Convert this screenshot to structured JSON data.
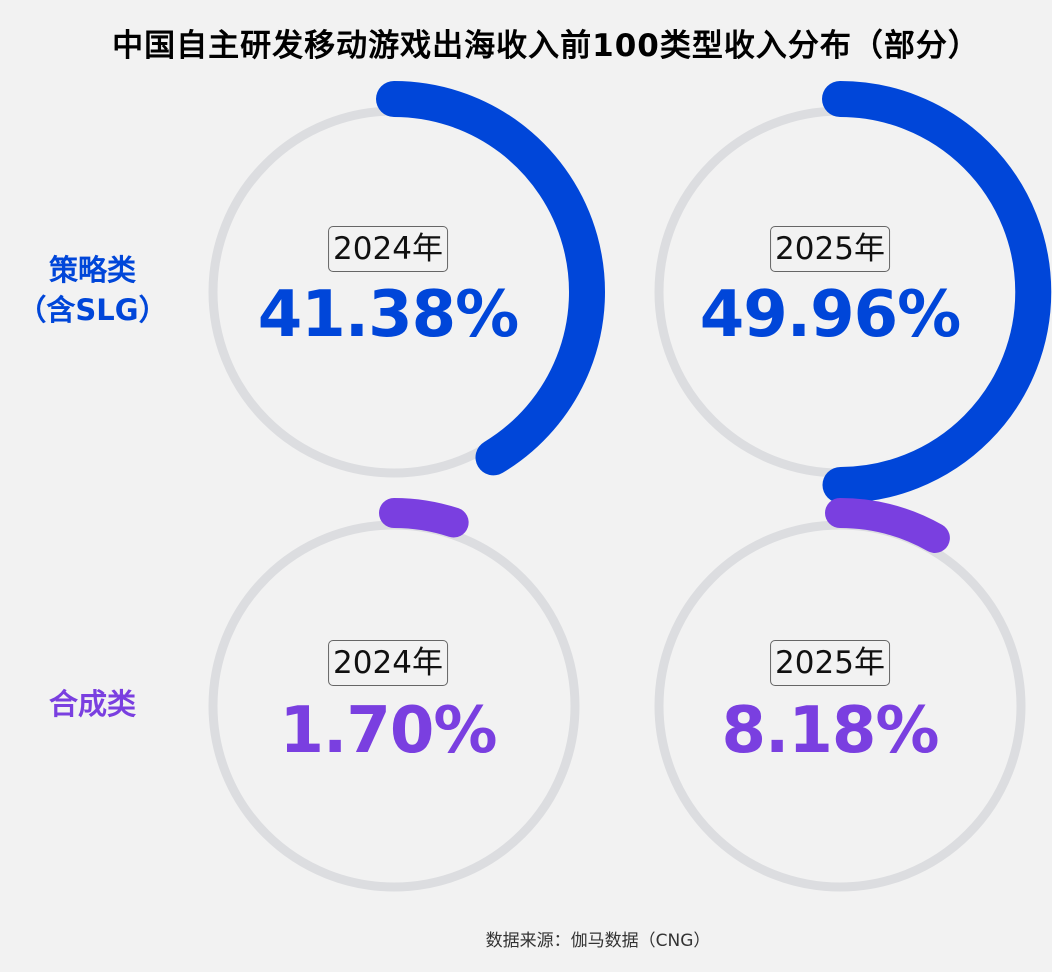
{
  "title": "中国自主研发移动游戏出海收入前100类型收入分布（部分）",
  "source": "数据来源：伽马数据（CNG）",
  "rows": [
    {
      "label_line1": "策略类",
      "label_line2": "（含SLG）",
      "color": "#0046d9",
      "items": [
        {
          "year": "2024年",
          "pct_text": "41.38%",
          "value": 41.38
        },
        {
          "year": "2025年",
          "pct_text": "49.96%",
          "value": 49.96
        }
      ]
    },
    {
      "label_line1": "合成类",
      "label_line2": "",
      "color": "#7a3fe0",
      "items": [
        {
          "year": "2024年",
          "pct_text": "1.70%",
          "value": 1.7
        },
        {
          "year": "2025年",
          "pct_text": "8.18%",
          "value": 8.18
        }
      ]
    }
  ],
  "chart_data": [
    {
      "type": "pie",
      "title": "中国自主研发移动游戏出海收入前100类型收入分布（部分）",
      "categories": [
        "2024年",
        "2025年"
      ],
      "series": [
        {
          "name": "策略类（含SLG）",
          "values": [
            41.38,
            49.96
          ]
        },
        {
          "name": "合成类",
          "values": [
            1.7,
            8.18
          ]
        }
      ],
      "unit": "%",
      "style": "progress-ring"
    }
  ],
  "colors": {
    "track": "#dcdde0",
    "background": "#f2f2f2"
  }
}
